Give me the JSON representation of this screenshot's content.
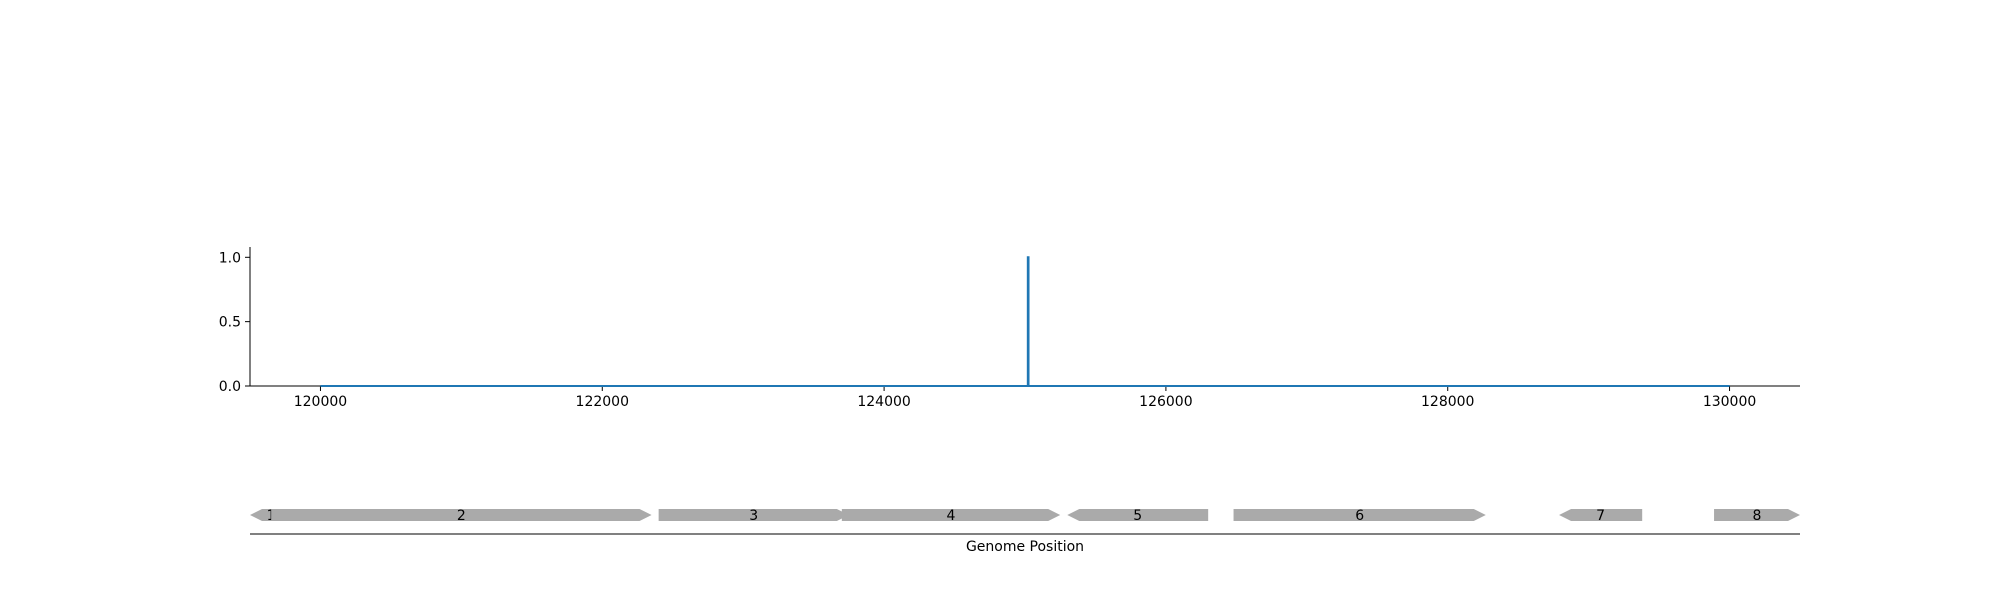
{
  "chart_data": [
    {
      "type": "line",
      "title": "",
      "xlabel": "",
      "ylabel": "",
      "xlim": [
        119500,
        130500
      ],
      "ylim": [
        0,
        1.08
      ],
      "x_ticks": [
        120000,
        122000,
        124000,
        126000,
        128000,
        130000
      ],
      "x_tick_labels": [
        "120000",
        "122000",
        "124000",
        "126000",
        "128000",
        "130000"
      ],
      "y_ticks": [
        0.0,
        0.5,
        1.0
      ],
      "y_tick_labels": [
        "0.0",
        "0.5",
        "1.0"
      ],
      "grid": false,
      "series": [
        {
          "color": "#1f77b4",
          "x": [
            120000,
            125020,
            125020,
            125025,
            125025,
            130000
          ],
          "y": [
            0,
            0,
            1.0,
            1.0,
            0,
            0
          ]
        }
      ]
    },
    {
      "type": "gene-track",
      "xlabel": "Genome Position",
      "xlim": [
        119500,
        130500
      ],
      "gene_color": "#aaaaaa",
      "genes": [
        {
          "label": "1",
          "start": 119500,
          "end": 119800,
          "strand": "-"
        },
        {
          "label": "2",
          "start": 119650,
          "end": 122350,
          "strand": "+"
        },
        {
          "label": "3",
          "start": 122400,
          "end": 123750,
          "strand": "+"
        },
        {
          "label": "4",
          "start": 123700,
          "end": 125250,
          "strand": "+"
        },
        {
          "label": "5",
          "start": 125300,
          "end": 126300,
          "strand": "-"
        },
        {
          "label": "6",
          "start": 126480,
          "end": 128270,
          "strand": "+"
        },
        {
          "label": "7",
          "start": 128790,
          "end": 129380,
          "strand": "-"
        },
        {
          "label": "8",
          "start": 129890,
          "end": 130500,
          "strand": "+"
        }
      ]
    }
  ]
}
